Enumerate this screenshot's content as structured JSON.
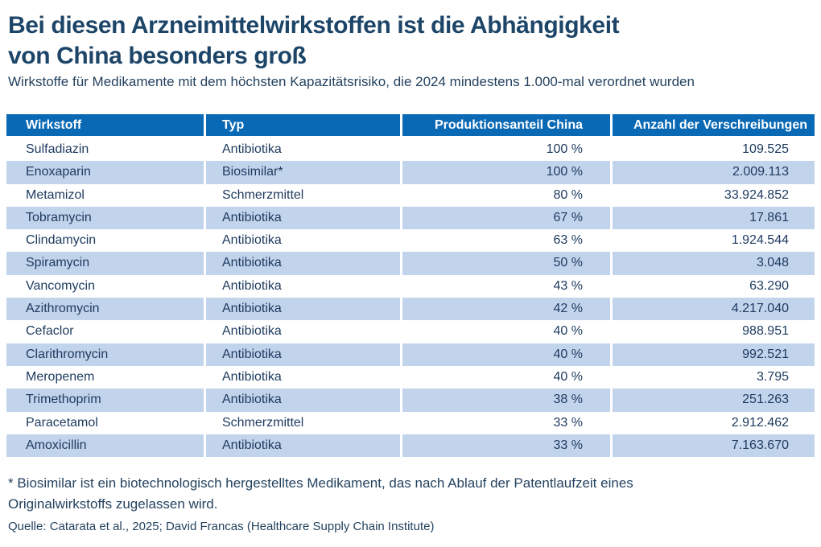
{
  "header": {
    "title_line1": "Bei diesen Arzneimittelwirkstoffen ist die Abhängigkeit",
    "title_line2": "von China besonders groß",
    "subtitle": "Wirkstoffe für Medikamente mit dem höchsten Kapazitätsrisiko, die 2024 mindestens 1.000-mal verordnet wurden"
  },
  "table": {
    "columns": [
      "Wirkstoff",
      "Typ",
      "Produktionsanteil China",
      "Anzahl der Verschreibungen"
    ],
    "rows": [
      [
        "Sulfadiazin",
        "Antibiotika",
        "100 %",
        "109.525"
      ],
      [
        "Enoxaparin",
        "Biosimilar*",
        "100 %",
        "2.009.113"
      ],
      [
        "Metamizol",
        "Schmerzmittel",
        "80 %",
        "33.924.852"
      ],
      [
        "Tobramycin",
        "Antibiotika",
        "67 %",
        "17.861"
      ],
      [
        "Clindamycin",
        "Antibiotika",
        "63 %",
        "1.924.544"
      ],
      [
        "Spiramycin",
        "Antibiotika",
        "50 %",
        "3.048"
      ],
      [
        "Vancomycin",
        "Antibiotika",
        "43 %",
        "63.290"
      ],
      [
        "Azithromycin",
        "Antibiotika",
        "42 %",
        "4.217.040"
      ],
      [
        "Cefaclor",
        "Antibiotika",
        "40 %",
        "988.951"
      ],
      [
        "Clarithromycin",
        "Antibiotika",
        "40 %",
        "992.521"
      ],
      [
        "Meropenem",
        "Antibiotika",
        "40 %",
        "3.795"
      ],
      [
        "Trimethoprim",
        "Antibiotika",
        "38 %",
        "251.263"
      ],
      [
        "Paracetamol",
        "Schmerzmittel",
        "33 %",
        "2.912.462"
      ],
      [
        "Amoxicillin",
        "Antibiotika",
        "33 %",
        "7.163.670"
      ]
    ]
  },
  "footnote_lines": [
    "* Biosimilar ist ein biotechnologisch hergestelltes Medikament, das nach Ablauf der Patentlaufzeit eines",
    "Originalwirkstoffs zugelassen wird."
  ],
  "source": "Quelle: Catarata et al., 2025; David Francas (Healthcare Supply Chain Institute)",
  "colors": {
    "header_bg": "#0a69b4",
    "header_text": "#ffffff",
    "row_alt_bg": "#c2d3ec",
    "text_navy": "#1d3a5e",
    "title_navy": "#1d4568"
  },
  "chart_data": {
    "type": "table",
    "title": "Bei diesen Arzneimittelwirkstoffen ist die Abhängigkeit von China besonders groß",
    "subtitle": "Wirkstoffe für Medikamente mit dem höchsten Kapazitätsrisiko, die 2024 mindestens 1.000-mal verordnet wurden",
    "columns": [
      "Wirkstoff",
      "Typ",
      "Produktionsanteil China",
      "Anzahl der Verschreibungen"
    ],
    "rows": [
      {
        "wirkstoff": "Sulfadiazin",
        "typ": "Antibiotika",
        "produktionsanteil_china_prozent": 100,
        "anzahl_verschreibungen": 109525
      },
      {
        "wirkstoff": "Enoxaparin",
        "typ": "Biosimilar*",
        "produktionsanteil_china_prozent": 100,
        "anzahl_verschreibungen": 2009113
      },
      {
        "wirkstoff": "Metamizol",
        "typ": "Schmerzmittel",
        "produktionsanteil_china_prozent": 80,
        "anzahl_verschreibungen": 33924852
      },
      {
        "wirkstoff": "Tobramycin",
        "typ": "Antibiotika",
        "produktionsanteil_china_prozent": 67,
        "anzahl_verschreibungen": 17861
      },
      {
        "wirkstoff": "Clindamycin",
        "typ": "Antibiotika",
        "produktionsanteil_china_prozent": 63,
        "anzahl_verschreibungen": 1924544
      },
      {
        "wirkstoff": "Spiramycin",
        "typ": "Antibiotika",
        "produktionsanteil_china_prozent": 50,
        "anzahl_verschreibungen": 3048
      },
      {
        "wirkstoff": "Vancomycin",
        "typ": "Antibiotika",
        "produktionsanteil_china_prozent": 43,
        "anzahl_verschreibungen": 63290
      },
      {
        "wirkstoff": "Azithromycin",
        "typ": "Antibiotika",
        "produktionsanteil_china_prozent": 42,
        "anzahl_verschreibungen": 4217040
      },
      {
        "wirkstoff": "Cefaclor",
        "typ": "Antibiotika",
        "produktionsanteil_china_prozent": 40,
        "anzahl_verschreibungen": 988951
      },
      {
        "wirkstoff": "Clarithromycin",
        "typ": "Antibiotika",
        "produktionsanteil_china_prozent": 40,
        "anzahl_verschreibungen": 992521
      },
      {
        "wirkstoff": "Meropenem",
        "typ": "Antibiotika",
        "produktionsanteil_china_prozent": 40,
        "anzahl_verschreibungen": 3795
      },
      {
        "wirkstoff": "Trimethoprim",
        "typ": "Antibiotika",
        "produktionsanteil_china_prozent": 38,
        "anzahl_verschreibungen": 251263
      },
      {
        "wirkstoff": "Paracetamol",
        "typ": "Schmerzmittel",
        "produktionsanteil_china_prozent": 33,
        "anzahl_verschreibungen": 2912462
      },
      {
        "wirkstoff": "Amoxicillin",
        "typ": "Antibiotika",
        "produktionsanteil_china_prozent": 33,
        "anzahl_verschreibungen": 7163670
      }
    ],
    "footnote": "* Biosimilar ist ein biotechnologisch hergestelltes Medikament, das nach Ablauf der Patentlaufzeit eines Originalwirkstoffs zugelassen wird.",
    "source": "Quelle: Catarata et al., 2025; David Francas (Healthcare Supply Chain Institute)"
  }
}
